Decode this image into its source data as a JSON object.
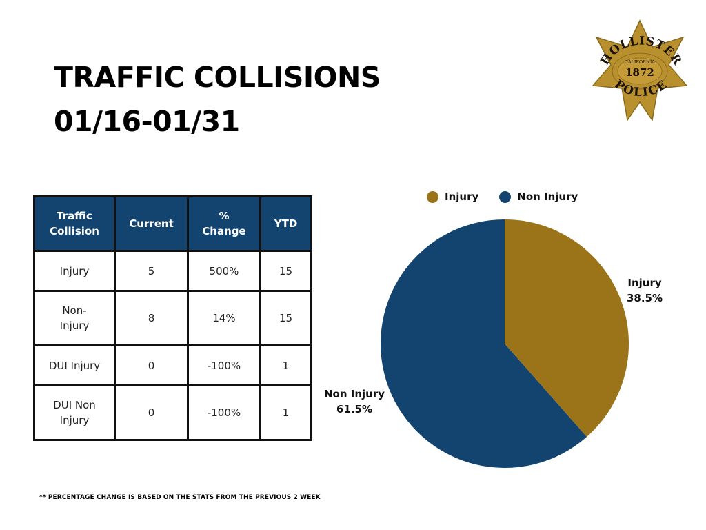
{
  "header": {
    "title_line1": "TRAFFIC COLLISIONS",
    "title_line2": "01/16-01/31"
  },
  "badge": {
    "top_text": "HOLLISTER",
    "sub_text": "CALIFORNIA",
    "year": "1872",
    "bottom_text": "POLICE",
    "color": "#b8902e"
  },
  "table": {
    "headers": [
      "Traffic Collision",
      "Current",
      "% Change",
      "YTD"
    ],
    "header_lines": [
      [
        "Traffic",
        "Collision"
      ],
      [
        "Current"
      ],
      [
        "%",
        "Change"
      ],
      [
        "YTD"
      ]
    ],
    "rows": [
      {
        "type_lines": [
          "Injury"
        ],
        "type": "Injury",
        "current": "5",
        "change": "500%",
        "change_dir": "up",
        "ytd": "15"
      },
      {
        "type_lines": [
          "Non-",
          "Injury"
        ],
        "type": "Non-Injury",
        "current": "8",
        "change": "14%",
        "change_dir": "up",
        "ytd": "15"
      },
      {
        "type_lines": [
          "DUI Injury"
        ],
        "type": "DUI Injury",
        "current": "0",
        "change": "-100%",
        "change_dir": "down",
        "ytd": "1"
      },
      {
        "type_lines": [
          "DUI Non",
          "Injury"
        ],
        "type": "DUI Non Injury",
        "current": "0",
        "change": "-100%",
        "change_dir": "down",
        "ytd": "1"
      }
    ],
    "colors": {
      "header_bg": "#134470",
      "positive": "#1f8a4c",
      "negative": "#e0262b"
    }
  },
  "legend": {
    "items": [
      {
        "label": "Injury",
        "color": "#9b7419"
      },
      {
        "label": "Non Injury",
        "color": "#134470"
      }
    ]
  },
  "pie_labels": {
    "injury_name": "Injury",
    "injury_pct": "38.5%",
    "non_injury_name": "Non Injury",
    "non_injury_pct": "61.5%"
  },
  "footnote": "** PERCENTAGE CHANGE IS BASED ON THE STATS FROM THE PREVIOUS 2 WEEK",
  "chart_data": {
    "type": "pie",
    "title": "",
    "categories": [
      "Injury",
      "Non Injury"
    ],
    "values": [
      38.5,
      61.5
    ],
    "counts": [
      5,
      8
    ],
    "colors": [
      "#9b7419",
      "#134470"
    ],
    "start_angle": "12 o'clock, clockwise",
    "legend_position": "top",
    "data_labels": [
      "Injury 38.5%",
      "Non Injury 61.5%"
    ]
  }
}
